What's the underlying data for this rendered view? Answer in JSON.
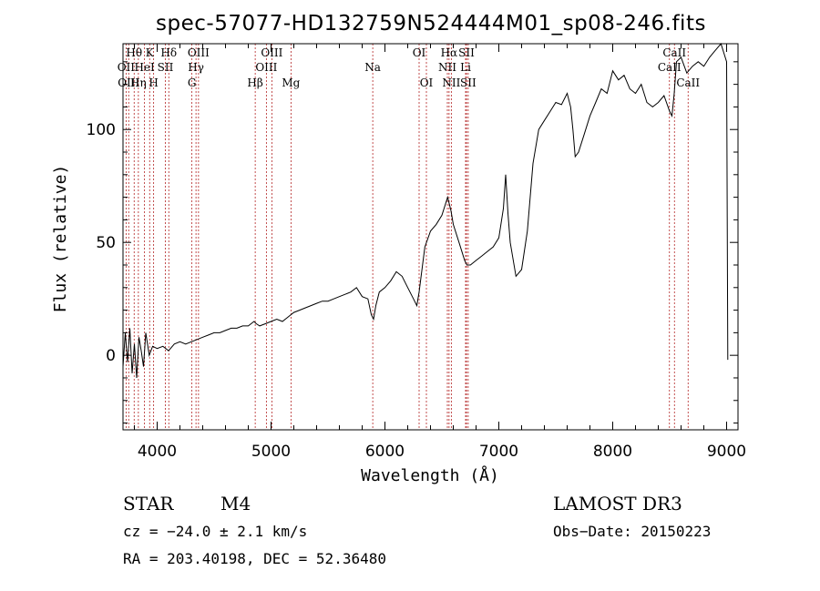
{
  "chart_data": {
    "type": "line",
    "title": "spec-57077-HD132759N524444M01_sp08-246.fits",
    "xlabel": "Wavelength (Å)",
    "ylabel": "Flux (relative)",
    "xlim": [
      3700,
      9100
    ],
    "ylim": [
      -33,
      138
    ],
    "x_ticks": [
      4000,
      5000,
      6000,
      7000,
      8000,
      9000
    ],
    "y_ticks": [
      0,
      50,
      100
    ],
    "series": [
      {
        "name": "flux",
        "x": [
          3700,
          3720,
          3740,
          3760,
          3780,
          3800,
          3820,
          3840,
          3860,
          3880,
          3900,
          3930,
          3960,
          4000,
          4050,
          4100,
          4150,
          4200,
          4250,
          4300,
          4350,
          4400,
          4450,
          4500,
          4550,
          4600,
          4650,
          4700,
          4750,
          4800,
          4850,
          4870,
          4900,
          4950,
          5000,
          5050,
          5100,
          5150,
          5200,
          5250,
          5300,
          5350,
          5400,
          5450,
          5500,
          5550,
          5600,
          5650,
          5700,
          5750,
          5800,
          5850,
          5880,
          5900,
          5920,
          5950,
          6000,
          6050,
          6100,
          6150,
          6200,
          6250,
          6280,
          6300,
          6350,
          6400,
          6450,
          6500,
          6550,
          6580,
          6600,
          6650,
          6700,
          6720,
          6750,
          6800,
          6850,
          6900,
          6950,
          7000,
          7040,
          7060,
          7080,
          7100,
          7150,
          7200,
          7250,
          7300,
          7350,
          7400,
          7450,
          7500,
          7550,
          7600,
          7630,
          7650,
          7670,
          7700,
          7750,
          7800,
          7850,
          7900,
          7950,
          8000,
          8050,
          8100,
          8150,
          8200,
          8250,
          8300,
          8350,
          8400,
          8450,
          8500,
          8520,
          8540,
          8560,
          8600,
          8650,
          8700,
          8750,
          8800,
          8850,
          8900,
          8950,
          9000,
          9010
        ],
        "values": [
          -5,
          10,
          -3,
          12,
          -8,
          5,
          -10,
          8,
          2,
          -5,
          10,
          0,
          4,
          3,
          4,
          2,
          5,
          6,
          5,
          6,
          7,
          8,
          9,
          10,
          10,
          11,
          12,
          12,
          13,
          13,
          15,
          14,
          13,
          14,
          15,
          16,
          15,
          17,
          19,
          20,
          21,
          22,
          23,
          24,
          24,
          25,
          26,
          27,
          28,
          30,
          26,
          25,
          18,
          16,
          22,
          28,
          30,
          33,
          37,
          35,
          30,
          25,
          22,
          28,
          48,
          55,
          58,
          62,
          70,
          64,
          58,
          50,
          42,
          40,
          40,
          42,
          44,
          46,
          48,
          52,
          65,
          80,
          63,
          50,
          35,
          38,
          55,
          85,
          100,
          104,
          108,
          112,
          111,
          116,
          110,
          100,
          88,
          90,
          98,
          106,
          112,
          118,
          116,
          126,
          122,
          124,
          118,
          116,
          120,
          112,
          110,
          112,
          115,
          108,
          106,
          116,
          130,
          132,
          125,
          128,
          130,
          128,
          132,
          135,
          138,
          130,
          -2
        ]
      }
    ],
    "emission_lines": [
      {
        "name": "Hθ",
        "wavelength": 3798,
        "row": 1
      },
      {
        "name": "OII",
        "wavelength": 3727,
        "row": 2
      },
      {
        "name": "OIII",
        "wavelength": 3750,
        "row": 3
      },
      {
        "name": "Hη",
        "wavelength": 3835,
        "row": 3
      },
      {
        "name": "K",
        "wavelength": 3934,
        "row": 1
      },
      {
        "name": "HeI",
        "wavelength": 3889,
        "row": 2
      },
      {
        "name": "H",
        "wavelength": 3969,
        "row": 3
      },
      {
        "name": "SII",
        "wavelength": 4072,
        "row": 2
      },
      {
        "name": "Hδ",
        "wavelength": 4102,
        "row": 1
      },
      {
        "name": "OIII",
        "wavelength": 4363,
        "row": 1
      },
      {
        "name": "Hγ",
        "wavelength": 4341,
        "row": 2
      },
      {
        "name": "G",
        "wavelength": 4305,
        "row": 3
      },
      {
        "name": "OIII",
        "wavelength": 5007,
        "row": 1
      },
      {
        "name": "OIII",
        "wavelength": 4959,
        "row": 2
      },
      {
        "name": "Hβ",
        "wavelength": 4861,
        "row": 3
      },
      {
        "name": "Mg",
        "wavelength": 5175,
        "row": 3
      },
      {
        "name": "Na",
        "wavelength": 5893,
        "row": 2
      },
      {
        "name": "OI",
        "wavelength": 6300,
        "row": 1
      },
      {
        "name": "OI",
        "wavelength": 6364,
        "row": 3
      },
      {
        "name": "Hα",
        "wavelength": 6563,
        "row": 1
      },
      {
        "name": "SII",
        "wavelength": 6716,
        "row": 1
      },
      {
        "name": "NII",
        "wavelength": 6548,
        "row": 2
      },
      {
        "name": "Li",
        "wavelength": 6708,
        "row": 2
      },
      {
        "name": "NII",
        "wavelength": 6583,
        "row": 3
      },
      {
        "name": "SII",
        "wavelength": 6731,
        "row": 3
      },
      {
        "name": "CaII",
        "wavelength": 8542,
        "row": 1
      },
      {
        "name": "CaII",
        "wavelength": 8498,
        "row": 2
      },
      {
        "name": "CaII",
        "wavelength": 8662,
        "row": 3
      }
    ]
  },
  "info": {
    "class": "STAR",
    "subclass": "M4",
    "survey": "LAMOST DR3",
    "cz": "cz = −24.0 ± 2.1 km/s",
    "obs_date": "Obs−Date: 20150223",
    "coords": "RA = 203.40198, DEC =  52.36480"
  },
  "colors": {
    "line": "#000000",
    "emission_line": "#b22222"
  }
}
